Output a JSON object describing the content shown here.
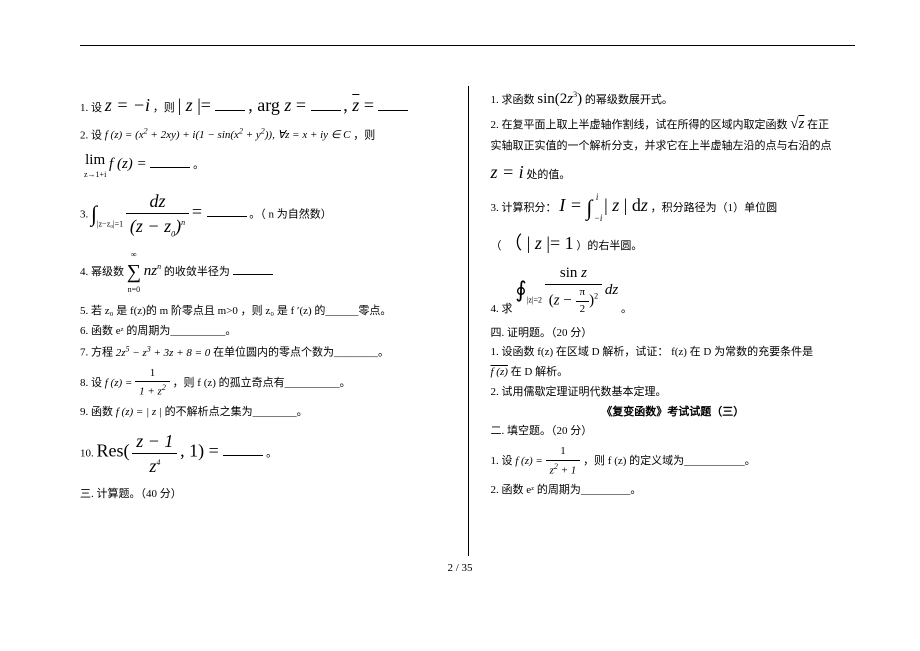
{
  "left": {
    "q1_pre": "1.  设 ",
    "q1_math1": "z = −i",
    "q1_mid1": " ，则 ",
    "q1_math2": "| z |= ",
    "q1_mid2": " , arg z = ",
    "q1_mid3": " , ",
    "q1_math3": "z̄ = ",
    "q2_pre": "2. 设 ",
    "q2_math": "f (z) = (x² + 2xy) + i(1 − sin(x² + y²)), ∀z = x + iy ∈ C",
    "q2_post": " ，则",
    "q2_lim_pre": "lim",
    "q2_lim_sub": "z→1+i",
    "q2_lim_fn": " f (z) = ",
    "q2_lim_post": "。",
    "q3_pre": "3.  ",
    "q3_int_sub": "|z−z₀|=1",
    "q3_frac_num": "dz",
    "q3_frac_den": "(z − z₀)ⁿ",
    "q3_eq": " = ",
    "q3_post": "。（ n 为自然数）",
    "q4_pre": "4.  幂级数 ",
    "q4_sum_top": "∞",
    "q4_sum_bot": "n=0",
    "q4_sum_term": " nzⁿ",
    "q4_mid": " 的收敛半径为 ",
    "q4_post": "",
    "q5": "5.  若 z₀ 是  f(z)的 m 阶零点且 m>0 ，则 z₀ 是  f ′(z) 的______零点。",
    "q6": "6.  函数  eᶻ 的周期为__________。",
    "q7_pre": "7.  方程 ",
    "q7_math": "2z⁵ − z³ + 3z + 8 = 0",
    "q7_post": " 在单位圆内的零点个数为________。",
    "q8_pre": "8.  设 ",
    "q8_fn": "f (z) = ",
    "q8_frac_num": "1",
    "q8_frac_den": "1 + z²",
    "q8_post": " ，则  f (z) 的孤立奇点有__________。",
    "q9_pre": "9.  函数 ",
    "q9_math": " f (z) = | z | ",
    "q9_post": "的不解析点之集为________。",
    "q10_pre": "10.  ",
    "q10_res": "Res(",
    "q10_frac_num": "z − 1",
    "q10_frac_den": "z⁴",
    "q10_close": ", 1) = ",
    "q10_post": " 。",
    "sec3": "三.  计算题。（40 分）"
  },
  "right": {
    "r1_pre": "1.  求函数 ",
    "r1_fn": "sin(2z³)",
    "r1_post": " 的幂级数展开式。",
    "r2_a": "2.    在复平面上取上半虚轴作割线，试在所得的区域内取定函数 ",
    "r2_sqrt": "√z",
    "r2_a2": " 在正",
    "r2_b": "实轴取正实值的一个解析分支，并求它在上半虚轴左沿的点与右沿的点",
    "r2_c_pre": "",
    "r2_c_math": "z = i",
    "r2_c_post": " 处的值。",
    "r3_pre": "3.            计算积分：",
    "r3_I": "I = ",
    "r3_int_top": "i",
    "r3_int_bot": "−i",
    "r3_integrand": " | z | dz",
    "r3_post": " ，积分路径为（1）单位圆",
    "r3_d_pre": "（",
    "r3_d_math": "| z |= 1",
    "r3_d_post": " ）的右半圆。",
    "r4_pre": "4.  求  ",
    "r4_oint_sub": "|z|=2",
    "r4_frac_num": "sin z",
    "r4_frac_den_a": "(z − ",
    "r4_frac_den_pi": "π",
    "r4_frac_den_2": "2",
    "r4_frac_den_b": ")²",
    "r4_dz": " dz",
    "r4_post": "    。",
    "sec4": "四.  证明题。（20 分）",
    "p1a": "1.    设函数  f(z) 在区域 D 解析，试证： f(z) 在 D 为常数的充要条件是",
    "p1b_bar": "f (z)",
    "p1b_post": " 在 D 解析。",
    "p2": "2.  试用儒歇定理证明代数基本定理。",
    "title3": "《复变函数》考试试题（三）",
    "sec2b": "二.  填空题。（20 分）",
    "b1_pre": "1.  设 ",
    "b1_fn": "f (z) = ",
    "b1_frac_num": "1",
    "b1_frac_den": "z² + 1",
    "b1_post": " ，则  f (z) 的定义域为___________。",
    "b2": "2.  函数  eᶻ 的周期为_________。"
  },
  "footer": "2  /  35"
}
